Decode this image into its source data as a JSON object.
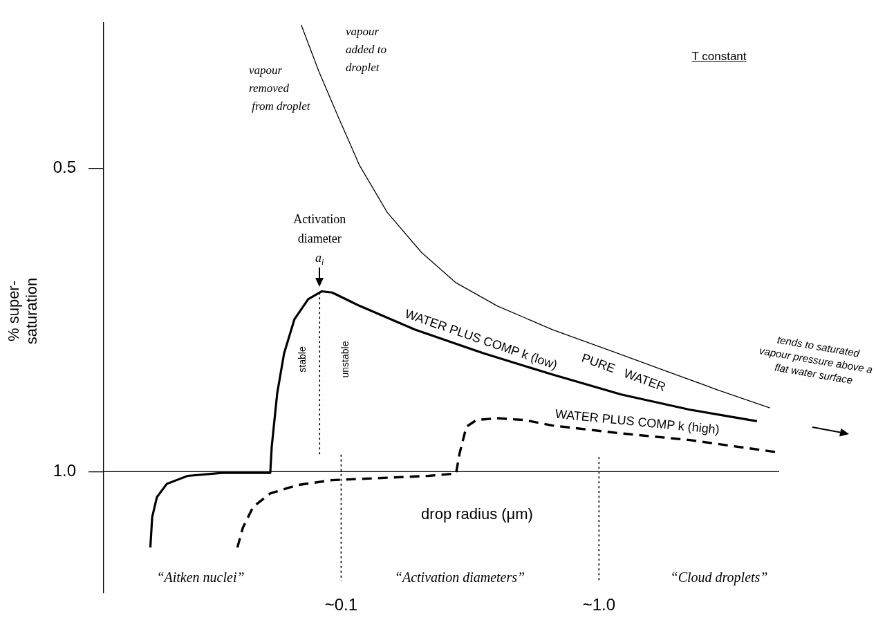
{
  "chart_data": {
    "type": "line",
    "xlabel": "drop radius (μm)",
    "ylabel": "% super-saturation",
    "log": "x",
    "xlim": [
      0.012,
      5
    ],
    "xticks": [
      {
        "value": 0.1,
        "label": "~0.1"
      },
      {
        "value": 1,
        "label": "~1.0"
      }
    ],
    "ylim": [
      1.2,
      0.26
    ],
    "yticks": [
      0.5,
      {
        "value": 1,
        "label": "1.0"
      }
    ],
    "grid": false,
    "legend": false,
    "series": [
      {
        "name": "PURE   WATER",
        "color": "#000000",
        "x": [
          0.07,
          0.082,
          0.098,
          0.118,
          0.151,
          0.205,
          0.279,
          0.403,
          0.659,
          1.08,
          1.76,
          2.87,
          4.6
        ],
        "values": [
          0.264,
          0.341,
          0.418,
          0.496,
          0.573,
          0.639,
          0.689,
          0.727,
          0.766,
          0.799,
          0.832,
          0.865,
          0.895
        ]
      },
      {
        "name": "WATER PLUS COMP k (low)",
        "color": "#000000",
        "x": [
          0.0182,
          0.0185,
          0.0193,
          0.0211,
          0.0254,
          0.0346,
          0.0531,
          0.0538,
          0.0565,
          0.0601,
          0.0659,
          0.0745,
          0.0842,
          0.0923,
          0.118,
          0.193,
          0.356,
          0.659,
          1.22,
          2.25,
          4.1
        ],
        "values": [
          1.125,
          1.075,
          1.042,
          1.02,
          1.007,
          1.002,
          1.002,
          0.959,
          0.871,
          0.805,
          0.749,
          0.716,
          0.703,
          0.705,
          0.727,
          0.766,
          0.805,
          0.84,
          0.873,
          0.898,
          0.917
        ]
      },
      {
        "name": "WATER PLUS COMP k (high)",
        "color": "#000000",
        "line_style": "dashed",
        "x": [
          0.0396,
          0.0416,
          0.0456,
          0.0531,
          0.0679,
          0.0923,
          0.151,
          0.218,
          0.279,
          0.288,
          0.306,
          0.335,
          0.403,
          0.515,
          0.659,
          1.22,
          2.25,
          4.9
        ],
        "values": [
          1.125,
          1.092,
          1.058,
          1.036,
          1.022,
          1.014,
          1.01,
          1.007,
          1.003,
          0.97,
          0.926,
          0.915,
          0.912,
          0.915,
          0.924,
          0.937,
          0.948,
          0.968
        ]
      },
      {
        "color": "#000000",
        "line_style": "dotted",
        "x": [
          0.0825,
          0.0825
        ],
        "values": [
          0.705,
          0.973
        ]
      },
      {
        "color": "#000000",
        "line_style": "dotted",
        "x": [
          0.1,
          0.1
        ],
        "values": [
          0.972,
          1.18
        ]
      },
      {
        "color": "#000000",
        "line_style": "dotted",
        "x": [
          1,
          1
        ],
        "values": [
          0.976,
          1.18
        ]
      }
    ],
    "ref_lines": [
      {
        "axis": "y",
        "value": 1
      }
    ],
    "annotations": [
      "vapour\nremoved\n from droplet",
      "vapour\nadded to\ndroplet",
      "T constant",
      {
        "text": "Activation\ndiameter\na$_{i}$",
        "x": 0.0825,
        "y": 0.703
      },
      "stable",
      "unstable",
      "“Aitken nuclei”",
      "“Activation diameters”",
      "“Cloud droplets”",
      "tends to saturated\nvapour pressure above a\nflat water surface"
    ]
  }
}
